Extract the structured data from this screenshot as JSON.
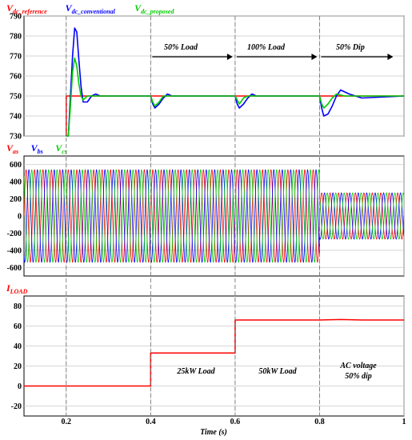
{
  "chart_data": [
    {
      "type": "line",
      "legend": [
        {
          "main": "V",
          "sub": "dc_reference",
          "color": "#ff0000"
        },
        {
          "main": "V",
          "sub": "dc_conventional",
          "color": "#0000ff"
        },
        {
          "main": "V",
          "sub": "dc_proposed",
          "color": "#00cc00"
        }
      ],
      "xlim": [
        0.1,
        1.0
      ],
      "ylim": [
        730,
        790
      ],
      "yticks": [
        730,
        740,
        750,
        760,
        770,
        780,
        790
      ],
      "series": [
        {
          "name": "Vdc_reference",
          "color": "#ff0000",
          "x": [
            0.2,
            0.2,
            1.0
          ],
          "y": [
            730,
            750,
            750
          ]
        },
        {
          "name": "Vdc_conventional",
          "color": "#0000ff",
          "x": [
            0.2,
            0.205,
            0.21,
            0.215,
            0.22,
            0.225,
            0.23,
            0.235,
            0.24,
            0.25,
            0.26,
            0.27,
            0.28,
            0.3,
            0.4,
            0.405,
            0.41,
            0.42,
            0.43,
            0.44,
            0.45,
            0.6,
            0.605,
            0.61,
            0.62,
            0.63,
            0.64,
            0.65,
            0.8,
            0.805,
            0.81,
            0.82,
            0.83,
            0.84,
            0.85,
            0.87,
            0.9,
            1.0
          ],
          "y": [
            730,
            730,
            750,
            770,
            784,
            782,
            768,
            755,
            747,
            747,
            750,
            751,
            750,
            750,
            750,
            746,
            744,
            746,
            749,
            751,
            750,
            750,
            746,
            744,
            746,
            749,
            751,
            750,
            750,
            744,
            740,
            741,
            745,
            750,
            753,
            751,
            749,
            750
          ]
        },
        {
          "name": "Vdc_proposed",
          "color": "#00cc00",
          "x": [
            0.2,
            0.205,
            0.21,
            0.215,
            0.22,
            0.225,
            0.23,
            0.235,
            0.24,
            0.25,
            0.26,
            0.3,
            0.4,
            0.405,
            0.41,
            0.42,
            0.43,
            0.44,
            0.6,
            0.605,
            0.61,
            0.62,
            0.63,
            0.8,
            0.805,
            0.81,
            0.82,
            0.83,
            0.84,
            0.86,
            1.0
          ],
          "y": [
            730,
            730,
            745,
            762,
            769,
            765,
            756,
            750,
            748,
            750,
            750,
            750,
            750,
            747,
            745,
            747,
            750,
            750,
            750,
            748,
            746,
            749,
            750,
            750,
            746,
            744,
            746,
            749,
            751,
            750,
            750
          ]
        }
      ],
      "annotations": [
        "50% Load",
        "100% Load",
        "50% Dip"
      ]
    },
    {
      "type": "line",
      "legend": [
        {
          "main": "V",
          "sub": "as",
          "color": "#ff0000"
        },
        {
          "main": "V",
          "sub": "bs",
          "color": "#0000ff"
        },
        {
          "main": "V",
          "sub": "cs",
          "color": "#00cc00"
        }
      ],
      "xlim": [
        0.1,
        1.0
      ],
      "ylim": [
        -700,
        700
      ],
      "yticks": [
        -600,
        -400,
        -200,
        0,
        200,
        400,
        600
      ],
      "series": [
        {
          "name": "Vas",
          "color": "#ff0000",
          "amplitude_before_dip": 540,
          "amplitude_after_dip": 270,
          "frequency_hz": 50,
          "phase_deg": 0
        },
        {
          "name": "Vbs",
          "color": "#0000ff",
          "amplitude_before_dip": 540,
          "amplitude_after_dip": 270,
          "frequency_hz": 50,
          "phase_deg": -120
        },
        {
          "name": "Vcs",
          "color": "#00cc00",
          "amplitude_before_dip": 540,
          "amplitude_after_dip": 270,
          "frequency_hz": 50,
          "phase_deg": 120
        }
      ],
      "dip_time": 0.8
    },
    {
      "type": "line",
      "legend": [
        {
          "main": "I",
          "sub": "LOAD",
          "color": "#ff0000"
        }
      ],
      "xlim": [
        0.1,
        1.0
      ],
      "ylim": [
        -30,
        90
      ],
      "yticks": [
        -20,
        0,
        20,
        40,
        60,
        80
      ],
      "series": [
        {
          "name": "ILOAD",
          "color": "#ff0000",
          "x": [
            0.1,
            0.4,
            0.4,
            0.6,
            0.6,
            0.8,
            0.85,
            0.9,
            1.0
          ],
          "y": [
            0,
            0,
            33,
            33,
            66,
            66,
            66.5,
            66,
            66
          ]
        }
      ],
      "annotations": [
        "25kW Load",
        "50kW Load",
        "AC voltage",
        "50% dip"
      ]
    }
  ],
  "xaxis": {
    "ticks": [
      "0.2",
      "0.4",
      "0.6",
      "0.8",
      "1"
    ],
    "tick_values": [
      0.2,
      0.4,
      0.6,
      0.8,
      1.0
    ],
    "label": "Time (s)"
  }
}
